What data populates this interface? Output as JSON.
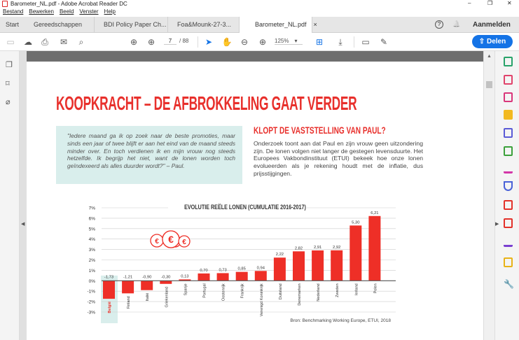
{
  "window": {
    "title": "Barometer_NL.pdf - Adobe Acrobat Reader DC",
    "min": "–",
    "max": "❐",
    "close": "✕"
  },
  "menu": [
    "Bestand",
    "Bewerken",
    "Beeld",
    "Venster",
    "Help"
  ],
  "tabs": [
    {
      "label": "Start"
    },
    {
      "label": "Gereedschappen"
    },
    {
      "label": "BDI Policy Paper Ch..."
    },
    {
      "label": "Foa&Mounk-27-3..."
    },
    {
      "label": "Barometer_NL.pdf"
    }
  ],
  "tab_close": "×",
  "header": {
    "help": "?",
    "bell": "🔔",
    "signin": "Aanmelden"
  },
  "toolbar": {
    "page_current": "7",
    "page_total": "/ 88",
    "zoom": "125%",
    "zoom_arrow": "▾",
    "share": "Delen"
  },
  "doc": {
    "title": "KOOPKRACHT – DE AFBROKKELING GAAT VERDER",
    "quote": "\"Iedere maand ga ik op zoek naar de beste promoties, maar sinds een jaar of twee blijft er aan het eind van de maand steeds minder over. En toch verdienen ik en mijn vrouw nog steeds hetzelfde. Ik begrijp het niet, want de lonen worden toch geïndexeerd als alles duurder wordt?\" – Paul.",
    "heading": "KLOPT DE VASTSTELLING VAN PAUL?",
    "paragraph": "Onderzoek toont aan dat Paul en zijn vrouw geen uitzondering zijn. De lonen volgen niet langer de gestegen levensduurte. Het Europees Vakbondinstituut (ETUI) bekeek hoe onze lonen evolueerden als je rekening houdt met de inflatie, dus prijsstijgingen."
  },
  "chart_data": {
    "type": "bar",
    "title": "EVOLUTIE REËLE LONEN (CUMULATIE 2016-2017)",
    "categories": [
      "België",
      "Finland",
      "Italië",
      "Griekenland",
      "Spanje",
      "Portugal",
      "Oostenrijk",
      "Frankrijk",
      "Verenigd Koninkrijk",
      "Duitsland",
      "Denemarken",
      "Nederland",
      "Zweden",
      "Ierland",
      "Polen"
    ],
    "values": [
      -1.73,
      -1.21,
      -0.9,
      -0.3,
      0.13,
      0.7,
      0.73,
      0.85,
      0.94,
      2.22,
      2.82,
      2.91,
      2.92,
      5.3,
      6.21
    ],
    "value_labels": [
      "-1,73",
      "-1,21",
      "-0,90",
      "-0,30",
      "0,13",
      "0,70",
      "0,73",
      "0,85",
      "0,94",
      "2,22",
      "2,82",
      "2,91",
      "2,92",
      "5,30",
      "6,21"
    ],
    "yticks": [
      "7%",
      "6%",
      "5%",
      "4%",
      "3%",
      "2%",
      "1%",
      "0%",
      "-1%",
      "-2%",
      "-3%"
    ],
    "ylim": [
      -3,
      7
    ],
    "highlight": "België",
    "source": "Bron: Benchmarking Working Europe, ETUI, 2018",
    "bar_color": "#ee2f27",
    "highlight_bg": "#d9eeec",
    "grid": true
  }
}
